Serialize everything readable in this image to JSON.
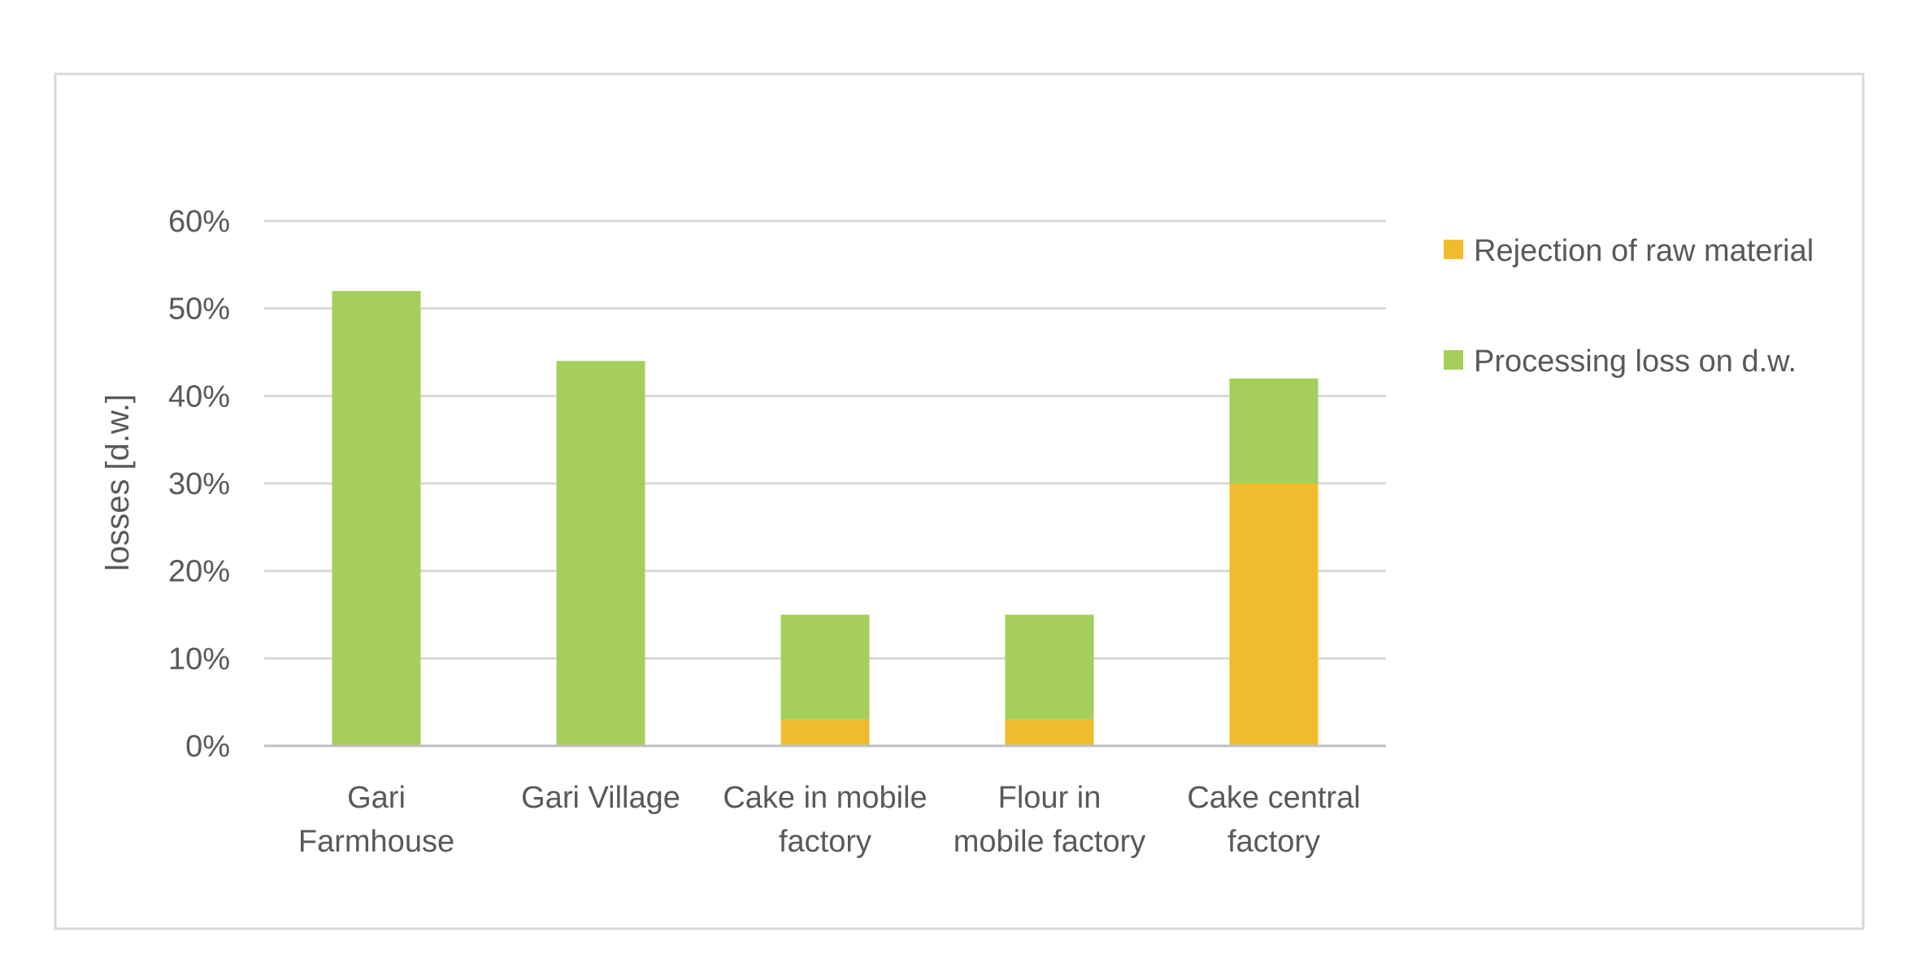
{
  "chart_data": {
    "type": "bar",
    "stacked": true,
    "title": "",
    "xlabel": "",
    "ylabel": "losses  [d.w.]",
    "ylim": [
      0,
      60
    ],
    "ytick_step": 10,
    "ytick_suffix": "%",
    "grid": true,
    "legend_position": "right",
    "categories": [
      [
        "Gari",
        "Farmhouse"
      ],
      [
        "Gari Village"
      ],
      [
        "Cake in mobile",
        "factory"
      ],
      [
        "Flour in",
        "mobile factory"
      ],
      [
        "Cake central",
        "factory"
      ]
    ],
    "series": [
      {
        "name": "Rejection of raw material",
        "color": "#f0bc2e",
        "values": [
          0,
          0,
          3,
          3,
          30
        ]
      },
      {
        "name": "Processing loss on d.w.",
        "color": "#a5cf5a",
        "values": [
          52,
          44,
          12,
          12,
          12
        ]
      }
    ]
  }
}
